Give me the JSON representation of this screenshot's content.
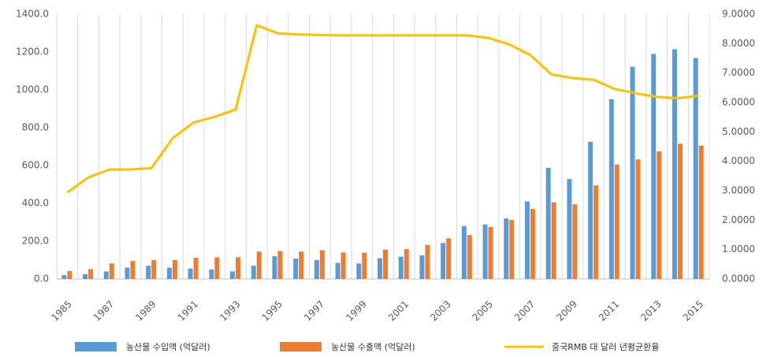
{
  "chart_data": {
    "type": "bar-line",
    "categories": [
      "1985",
      null,
      "1987",
      null,
      "1989",
      null,
      "1991",
      null,
      "1993",
      null,
      "1995",
      null,
      "1997",
      null,
      "1999",
      null,
      "2001",
      null,
      "2003",
      null,
      "2005",
      null,
      "2007",
      null,
      "2009",
      null,
      "2011",
      null,
      "2013",
      null,
      "2015"
    ],
    "series": [
      {
        "name": "농산물 수입액 (억달러)",
        "color": "#5b9bd5",
        "type": "bar",
        "values": [
          20,
          25,
          40,
          60,
          70,
          60,
          55,
          50,
          40,
          70,
          120,
          108,
          100,
          85,
          82,
          110,
          118,
          125,
          190,
          280,
          288,
          320,
          410,
          588,
          528,
          725,
          950,
          1122,
          1190,
          1215,
          1168
        ]
      },
      {
        "name": "농산물 수출액 (억달러)",
        "color": "#ed7d31",
        "type": "bar",
        "values": [
          42,
          52,
          82,
          95,
          100,
          100,
          112,
          115,
          115,
          145,
          148,
          145,
          152,
          140,
          138,
          155,
          158,
          180,
          215,
          232,
          275,
          312,
          370,
          405,
          395,
          495,
          605,
          632,
          675,
          715,
          705
        ]
      },
      {
        "name": "중국RMB 대 달러 년평균환율",
        "color": "#ffc000",
        "type": "line",
        "axis": "y2",
        "values": [
          2.94,
          3.45,
          3.72,
          3.72,
          3.77,
          4.78,
          5.32,
          5.51,
          5.76,
          8.62,
          8.35,
          8.31,
          8.29,
          8.28,
          8.28,
          8.28,
          8.28,
          8.28,
          8.28,
          8.28,
          8.19,
          7.97,
          7.61,
          6.95,
          6.83,
          6.77,
          6.46,
          6.31,
          6.19,
          6.14,
          6.23
        ]
      }
    ],
    "ylim": [
      0,
      1400
    ],
    "yticks": [
      {
        "value": 0,
        "label": "0.0"
      },
      {
        "value": 200,
        "label": "200.0"
      },
      {
        "value": 400,
        "label": "400.0"
      },
      {
        "value": 600,
        "label": "600.0"
      },
      {
        "value": 800,
        "label": "800.0"
      },
      {
        "value": 1000,
        "label": "1000.0"
      },
      {
        "value": 1200,
        "label": "1200.0"
      },
      {
        "value": 1400,
        "label": "1400.0"
      }
    ],
    "y2lim": [
      0,
      9
    ],
    "y2ticks": [
      {
        "value": 0,
        "label": "0.0000"
      },
      {
        "value": 1,
        "label": "1.0000"
      },
      {
        "value": 2,
        "label": "2.0000"
      },
      {
        "value": 3,
        "label": "3.0000"
      },
      {
        "value": 4,
        "label": "4.0000"
      },
      {
        "value": 5,
        "label": "5.0000"
      },
      {
        "value": 6,
        "label": "6.0000"
      },
      {
        "value": 7,
        "label": "7.0000"
      },
      {
        "value": 8,
        "label": "8.0000"
      },
      {
        "value": 9,
        "label": "9.0000"
      }
    ],
    "grid": true
  }
}
